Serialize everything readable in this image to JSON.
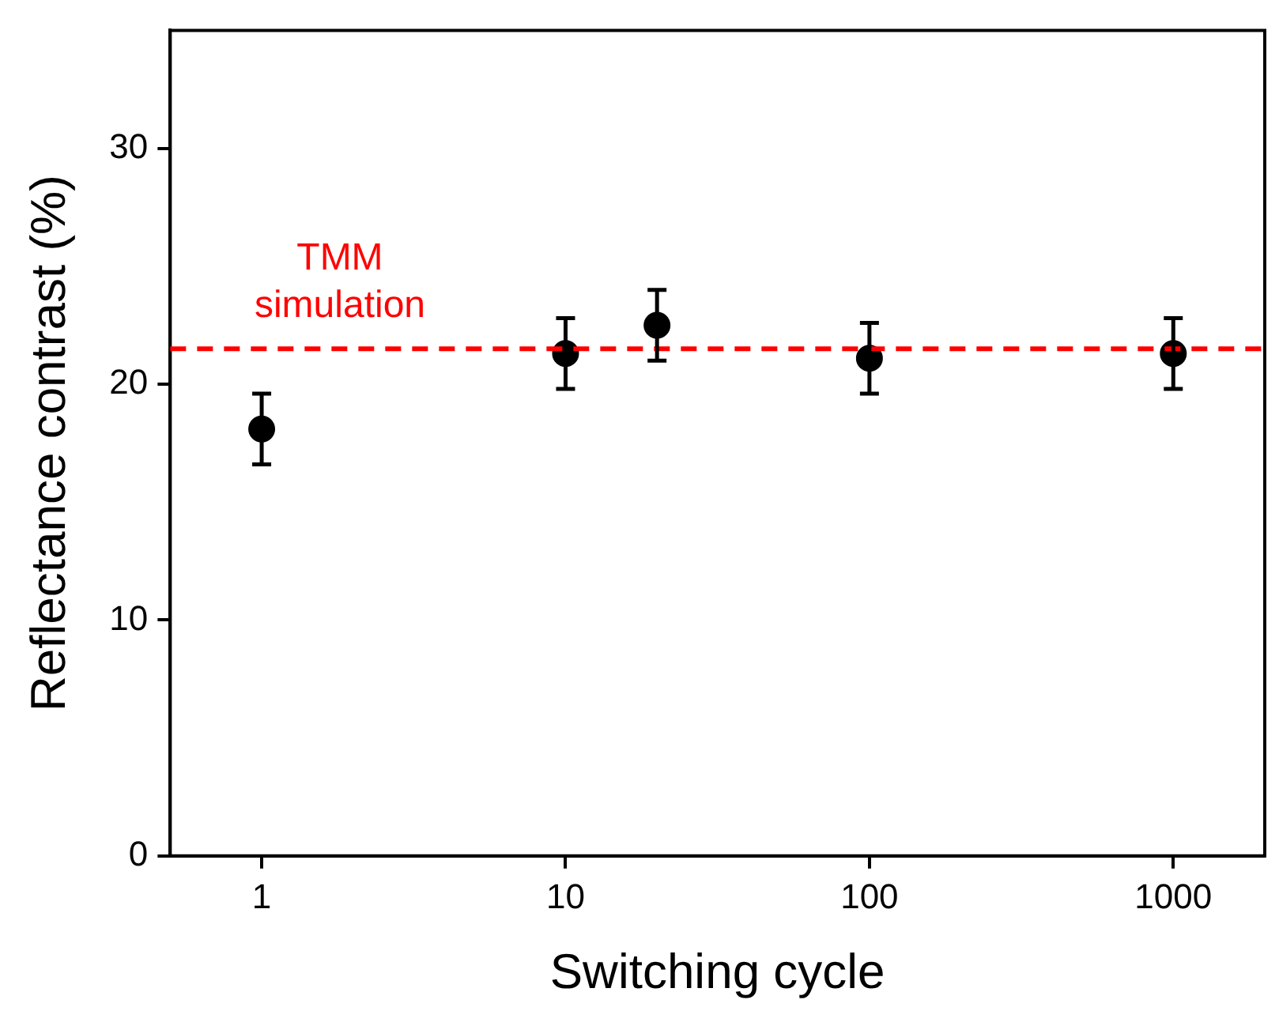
{
  "chart_data": {
    "type": "scatter",
    "xlabel": "Switching cycle",
    "ylabel": "Reflectance contrast (%)",
    "x": [
      1,
      10,
      20,
      100,
      1000
    ],
    "series": [
      {
        "color": "#000000",
        "values": [
          18.1,
          21.3,
          22.5,
          21.1,
          21.3
        ],
        "errors": [
          1.5,
          1.5,
          1.5,
          1.5,
          1.5
        ]
      }
    ],
    "log": "x",
    "xlim": [
      0.5,
      2000
    ],
    "xticks": [
      1,
      10,
      100,
      1000
    ],
    "ylim": [
      0,
      35
    ],
    "yticks": [
      0,
      10,
      20,
      30
    ],
    "grid": false,
    "legend": false,
    "marker": "circle",
    "ref_lines": [
      {
        "axis": "y",
        "value": 21.5,
        "label": "TMM simulation",
        "color": "#ff0000",
        "line_style": "dashed"
      }
    ]
  }
}
